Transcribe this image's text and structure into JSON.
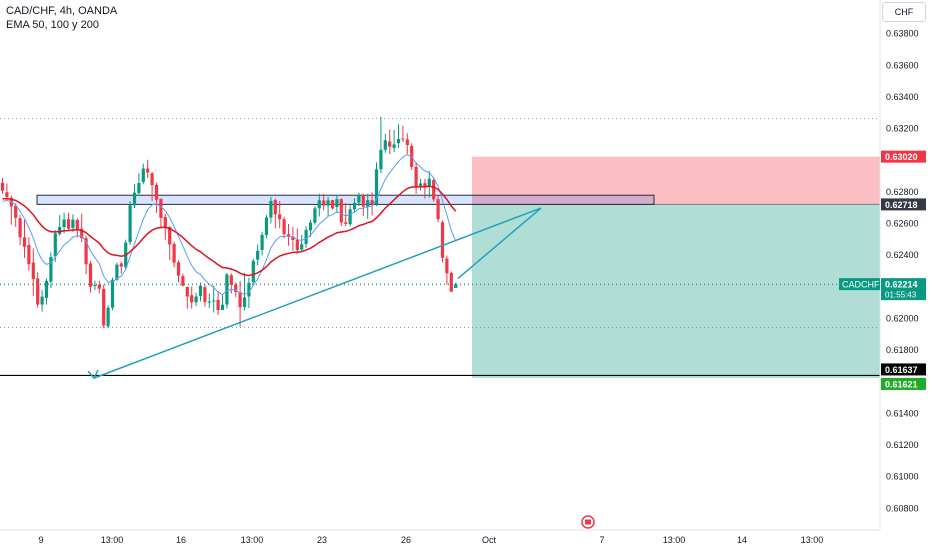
{
  "header": {
    "symbol_line": "CAD/CHF, 4h, OANDA",
    "indicator_line": "EMA 50, 100 y 200"
  },
  "currency_button": "CHF",
  "chart_data": {
    "type": "candlestick",
    "title": "CAD/CHF, 4h, OANDA",
    "y_ticks": [
      "0.63800",
      "0.63600",
      "0.63400",
      "0.63200",
      "0.62800",
      "0.62600",
      "0.62400",
      "0.62000",
      "0.61800",
      "0.61400",
      "0.61200",
      "0.61000",
      "0.60800"
    ],
    "ylim": [
      0.6066,
      0.6401
    ],
    "x_ticks": [
      "9",
      "13:00",
      "16",
      "13:00",
      "23",
      "26",
      "Oct",
      "7",
      "13:00",
      "14",
      "13:00"
    ],
    "price_labels": {
      "stop": "0.63020",
      "entry": "0.62718",
      "support": "0.61637",
      "target": "0.61621"
    },
    "current_price": {
      "symbol": "CADCHF",
      "price": "0.62214",
      "countdown": "01:55:43"
    },
    "levels": {
      "stop": 0.6302,
      "entry": 0.62718,
      "support": 0.61637,
      "target": 0.61621,
      "current": 0.62214
    },
    "dotted_lines": [
      0.6326,
      0.6221,
      0.6194
    ],
    "resistance_zone": [
      0.62718,
      0.62776
    ],
    "candles": [
      [
        0.62855,
        0.62805,
        0.62885,
        0.62785
      ],
      [
        0.62795,
        0.62765,
        0.6285,
        0.62745
      ],
      [
        0.6276,
        0.62705,
        0.62775,
        0.6259
      ],
      [
        0.6271,
        0.62633,
        0.62725,
        0.62575
      ],
      [
        0.6263,
        0.6251,
        0.6265,
        0.6246
      ],
      [
        0.6251,
        0.6245,
        0.6262,
        0.6238
      ],
      [
        0.62462,
        0.6234,
        0.6251,
        0.623
      ],
      [
        0.6235,
        0.62245,
        0.6244,
        0.6214
      ],
      [
        0.6225,
        0.62085,
        0.6229,
        0.62065
      ],
      [
        0.62085,
        0.62135,
        0.62175,
        0.6204
      ],
      [
        0.62127,
        0.62235,
        0.6225,
        0.62085
      ],
      [
        0.6223,
        0.62385,
        0.62415,
        0.6219
      ],
      [
        0.6239,
        0.62535,
        0.62555,
        0.62355
      ],
      [
        0.6253,
        0.62575,
        0.6265,
        0.6252
      ],
      [
        0.62575,
        0.62622,
        0.62665,
        0.62534
      ],
      [
        0.62625,
        0.62565,
        0.62665,
        0.62548
      ],
      [
        0.6257,
        0.62622,
        0.62655,
        0.62544
      ],
      [
        0.6262,
        0.6256,
        0.6263,
        0.6251
      ],
      [
        0.62564,
        0.62504,
        0.6266,
        0.6248
      ],
      [
        0.62505,
        0.6234,
        0.6252,
        0.62276
      ],
      [
        0.62345,
        0.62198,
        0.6236,
        0.6216
      ],
      [
        0.62207,
        0.62209,
        0.62237,
        0.62177
      ],
      [
        0.62209,
        0.62185,
        0.62235,
        0.62155
      ],
      [
        0.62184,
        0.61953,
        0.6221,
        0.61935
      ],
      [
        0.61947,
        0.62065,
        0.6208,
        0.61935
      ],
      [
        0.62065,
        0.62242,
        0.62255,
        0.6205
      ],
      [
        0.62242,
        0.62337,
        0.6235,
        0.62235
      ],
      [
        0.62345,
        0.62325,
        0.62355,
        0.6228
      ],
      [
        0.6232,
        0.62477,
        0.62495,
        0.6231
      ],
      [
        0.6248,
        0.62713,
        0.62738,
        0.62463
      ],
      [
        0.62712,
        0.62792,
        0.62846,
        0.62695
      ],
      [
        0.6279,
        0.62853,
        0.62915,
        0.62775
      ],
      [
        0.6286,
        0.62945,
        0.62975,
        0.62845
      ],
      [
        0.62945,
        0.6292,
        0.63,
        0.62885
      ],
      [
        0.62914,
        0.6284,
        0.62925,
        0.6274
      ],
      [
        0.62842,
        0.62747,
        0.62855,
        0.62665
      ],
      [
        0.62754,
        0.62633,
        0.62754,
        0.62565
      ],
      [
        0.62638,
        0.62573,
        0.62658,
        0.62495
      ],
      [
        0.62575,
        0.62465,
        0.6258,
        0.62365
      ],
      [
        0.62468,
        0.6235,
        0.6248,
        0.6232
      ],
      [
        0.62352,
        0.62267,
        0.62365,
        0.62225
      ],
      [
        0.62265,
        0.62205,
        0.6228,
        0.62198
      ],
      [
        0.62196,
        0.62136,
        0.62199,
        0.62059
      ],
      [
        0.62144,
        0.62099,
        0.62199,
        0.62059
      ],
      [
        0.621,
        0.62136,
        0.6216,
        0.62075
      ],
      [
        0.6214,
        0.62205,
        0.62225,
        0.62105
      ],
      [
        0.62195,
        0.62101,
        0.6221,
        0.62072
      ],
      [
        0.62102,
        0.62104,
        0.62155,
        0.62064
      ],
      [
        0.62106,
        0.6211,
        0.62205,
        0.62035
      ],
      [
        0.62115,
        0.6205,
        0.6217,
        0.62018
      ],
      [
        0.6205,
        0.62084,
        0.62148,
        0.62051
      ],
      [
        0.62085,
        0.62275,
        0.62285,
        0.6206
      ],
      [
        0.6227,
        0.6221,
        0.62282,
        0.62155
      ],
      [
        0.6221,
        0.62165,
        0.62225,
        0.62131
      ],
      [
        0.62163,
        0.62068,
        0.62235,
        0.61945
      ],
      [
        0.6207,
        0.6213,
        0.62285,
        0.62048
      ],
      [
        0.62136,
        0.62222,
        0.62255,
        0.62063
      ],
      [
        0.62227,
        0.62361,
        0.62375,
        0.62213
      ],
      [
        0.62369,
        0.62425,
        0.62465,
        0.62331
      ],
      [
        0.6243,
        0.62525,
        0.62545,
        0.62396
      ],
      [
        0.62525,
        0.62635,
        0.6265,
        0.62505
      ],
      [
        0.62635,
        0.6274,
        0.62765,
        0.62598
      ],
      [
        0.62745,
        0.62655,
        0.62755,
        0.62567
      ],
      [
        0.62655,
        0.62625,
        0.6274,
        0.62567
      ],
      [
        0.62625,
        0.6253,
        0.6264,
        0.62503
      ],
      [
        0.6253,
        0.62515,
        0.62595,
        0.62457
      ],
      [
        0.62515,
        0.62493,
        0.62575,
        0.62425
      ],
      [
        0.62493,
        0.6243,
        0.62565,
        0.62405
      ],
      [
        0.62432,
        0.62466,
        0.62526,
        0.62417
      ],
      [
        0.62468,
        0.62557,
        0.6258,
        0.62445
      ],
      [
        0.62554,
        0.62603,
        0.6262,
        0.62513
      ],
      [
        0.62602,
        0.62693,
        0.62706,
        0.62591
      ],
      [
        0.62693,
        0.62744,
        0.62785,
        0.62641
      ],
      [
        0.62743,
        0.62711,
        0.62785,
        0.62679
      ],
      [
        0.62711,
        0.62743,
        0.62765,
        0.62645
      ],
      [
        0.62745,
        0.62693,
        0.62744,
        0.62685
      ],
      [
        0.62702,
        0.62751,
        0.6278,
        0.62664
      ],
      [
        0.62751,
        0.62604,
        0.62757,
        0.62581
      ],
      [
        0.62605,
        0.62595,
        0.62726,
        0.6258
      ],
      [
        0.62593,
        0.62687,
        0.62713,
        0.6258
      ],
      [
        0.62687,
        0.62728,
        0.62758,
        0.62672
      ],
      [
        0.62729,
        0.62778,
        0.62792,
        0.62708
      ],
      [
        0.62779,
        0.62704,
        0.62785,
        0.62645
      ],
      [
        0.62704,
        0.62745,
        0.62785,
        0.62627
      ],
      [
        0.62745,
        0.6272,
        0.62795,
        0.62648
      ],
      [
        0.6272,
        0.6294,
        0.62984,
        0.62707
      ],
      [
        0.6294,
        0.63063,
        0.63273,
        0.62915
      ],
      [
        0.63063,
        0.63123,
        0.63165,
        0.63045
      ],
      [
        0.63116,
        0.63083,
        0.6319,
        0.63036
      ],
      [
        0.63075,
        0.63097,
        0.63188,
        0.63048
      ],
      [
        0.63105,
        0.63132,
        0.63225,
        0.63075
      ],
      [
        0.63135,
        0.63129,
        0.63215,
        0.63112
      ],
      [
        0.63129,
        0.63093,
        0.63167,
        0.63037
      ],
      [
        0.63087,
        0.62955,
        0.63105,
        0.62935
      ],
      [
        0.62955,
        0.6283,
        0.62985,
        0.62785
      ],
      [
        0.62835,
        0.6285,
        0.6288,
        0.62805
      ],
      [
        0.62852,
        0.6283,
        0.6288,
        0.62755
      ],
      [
        0.6283,
        0.6288,
        0.6293,
        0.62761
      ],
      [
        0.62872,
        0.6275,
        0.6289,
        0.62736
      ],
      [
        0.62751,
        0.62625,
        0.6278,
        0.62605
      ],
      [
        0.62605,
        0.6238,
        0.62615,
        0.6235
      ],
      [
        0.62376,
        0.62283,
        0.62395,
        0.6221
      ],
      [
        0.62285,
        0.62166,
        0.62295,
        0.62168
      ],
      [
        0.6219,
        0.62214,
        0.62225,
        0.6219
      ]
    ],
    "forecast_path": [
      [
        "26",
        0.6225
      ],
      [
        "Oct",
        0.62695
      ],
      [
        "13:00",
        0.6162
      ]
    ]
  }
}
